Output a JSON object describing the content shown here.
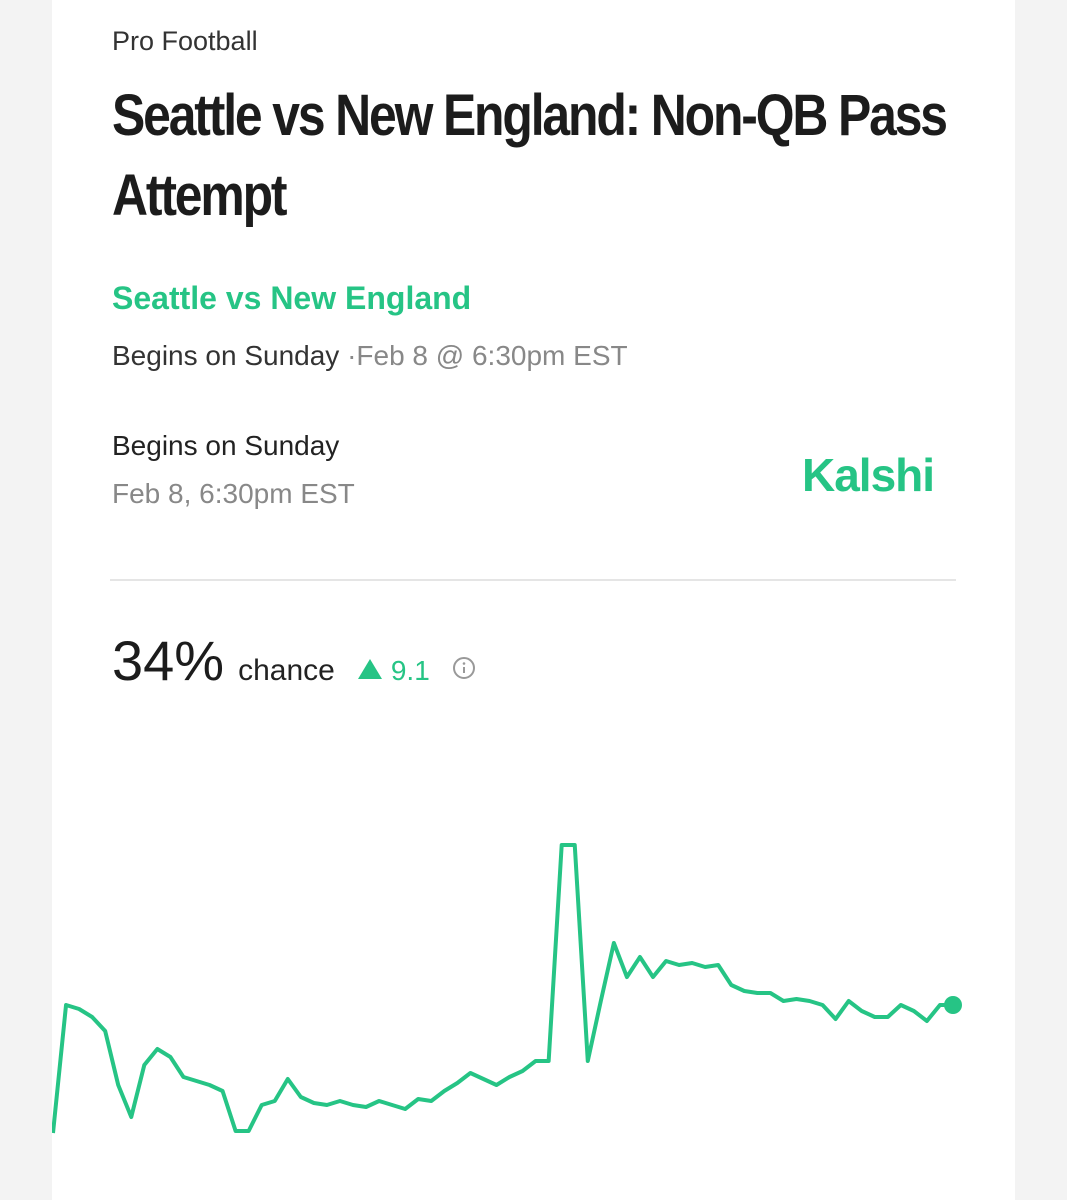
{
  "header": {
    "category": "Pro Football",
    "title": "Seattle vs New England: Non-QB Pass Attempt"
  },
  "event": {
    "name": "Seattle vs New England",
    "begins": "Begins on Sunday",
    "when": "·Feb 8 @ 6:30pm EST"
  },
  "schedule": {
    "begins": "Begins on Sunday",
    "when": "Feb 8, 6:30pm EST",
    "brand": "Kalshi"
  },
  "odds": {
    "probability": "34%",
    "label": "chance",
    "change": "9.1"
  },
  "chart_data": {
    "type": "line",
    "color": "#26c485",
    "values": [
      2,
      34,
      33,
      31,
      27.5,
      14,
      6,
      19,
      23,
      21,
      16,
      15,
      14,
      12.5,
      2.5,
      2.5,
      9,
      10,
      15.5,
      11,
      9.5,
      9,
      10,
      9,
      8.5,
      10,
      9,
      8,
      10.5,
      10,
      12.5,
      14.5,
      17,
      15.5,
      14,
      16,
      17.5,
      20,
      20,
      74,
      74,
      20,
      35,
      49.5,
      41,
      46,
      41,
      45,
      44,
      44.5,
      43.5,
      44,
      39,
      37.5,
      37,
      37,
      35,
      35.5,
      35,
      34,
      30.5,
      35,
      32.5,
      31,
      31,
      34,
      32.5,
      30,
      34,
      34
    ]
  }
}
